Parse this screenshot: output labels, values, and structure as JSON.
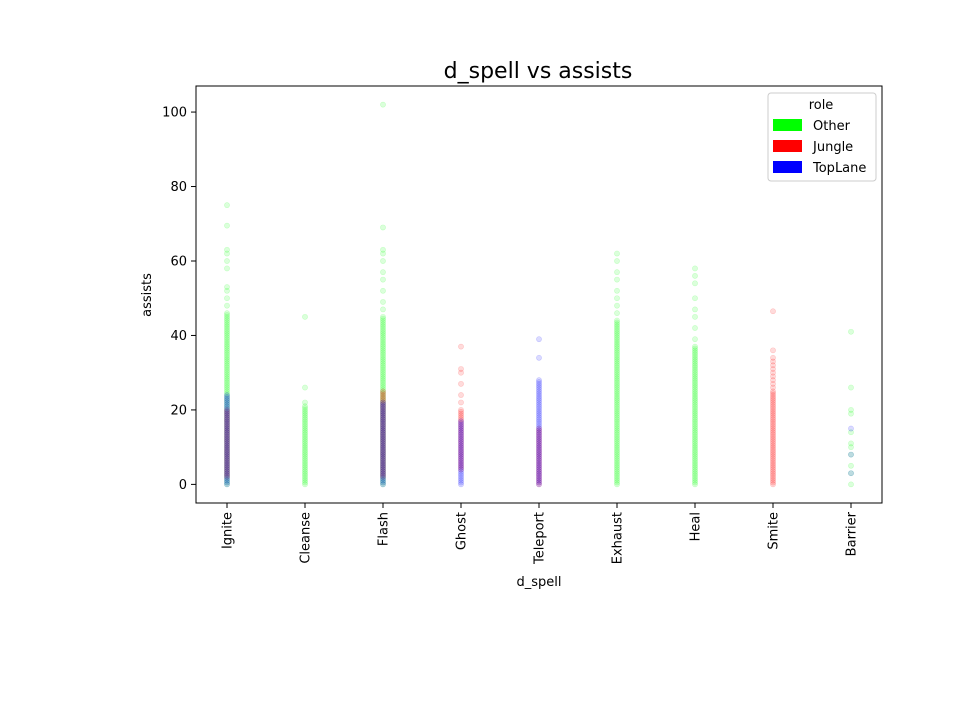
{
  "chart_data": {
    "type": "scatter",
    "title": "d_spell vs assists",
    "xlabel": "d_spell",
    "ylabel": "assists",
    "categories": [
      "Ignite",
      "Cleanse",
      "Flash",
      "Ghost",
      "Teleport",
      "Exhaust",
      "Heal",
      "Smite",
      "Barrier"
    ],
    "ylim": [
      -5,
      107
    ],
    "yticks": [
      0,
      20,
      40,
      60,
      80,
      100
    ],
    "grid": false,
    "legend": {
      "title": "role",
      "placement": "top-right"
    },
    "series": [
      {
        "name": "Other",
        "color": "#00ff00",
        "points": {
          "Ignite": {
            "dense_min": 0,
            "dense_max": 46,
            "sparse": [
              48,
              50,
              52,
              53,
              58,
              60,
              62,
              63,
              69.5,
              75
            ]
          },
          "Cleanse": {
            "dense_min": 0,
            "dense_max": 21,
            "sparse": [
              22,
              26,
              45
            ]
          },
          "Flash": {
            "dense_min": 0,
            "dense_max": 45,
            "sparse": [
              47,
              49,
              52,
              55,
              57,
              60,
              62,
              63,
              69,
              102
            ]
          },
          "Exhaust": {
            "dense_min": 0,
            "dense_max": 44,
            "sparse": [
              46,
              48,
              50,
              52,
              55,
              57,
              60,
              62
            ]
          },
          "Heal": {
            "dense_min": 0,
            "dense_max": 37,
            "sparse": [
              39,
              42,
              45,
              47,
              50,
              54,
              56,
              58
            ]
          },
          "Barrier": {
            "dense_min": 0,
            "dense_max": 0,
            "sparse": [
              0,
              3,
              5,
              8,
              10,
              11,
              14,
              19,
              20,
              26,
              41
            ]
          }
        }
      },
      {
        "name": "Jungle",
        "color": "#ff0000",
        "points": {
          "Ignite": {
            "dense_min": 2,
            "dense_max": 20,
            "sparse": []
          },
          "Flash": {
            "dense_min": 2,
            "dense_max": 25,
            "sparse": []
          },
          "Ghost": {
            "dense_min": 4,
            "dense_max": 20,
            "sparse": [
              22,
              24,
              27,
              30,
              31,
              37
            ]
          },
          "Teleport": {
            "dense_min": 0,
            "dense_max": 15,
            "sparse": []
          },
          "Smite": {
            "dense_min": 0,
            "dense_max": 25,
            "sparse": [
              26,
              27,
              28,
              29,
              30,
              31,
              32,
              33,
              34,
              36,
              46.5
            ]
          }
        }
      },
      {
        "name": "TopLane",
        "color": "#0000ff",
        "points": {
          "Ignite": {
            "dense_min": 0,
            "dense_max": 24,
            "sparse": []
          },
          "Flash": {
            "dense_min": 0,
            "dense_max": 22,
            "sparse": []
          },
          "Ghost": {
            "dense_min": 0,
            "dense_max": 17,
            "sparse": []
          },
          "Teleport": {
            "dense_min": 0,
            "dense_max": 28,
            "sparse": [
              34,
              39
            ]
          },
          "Barrier": {
            "dense_min": 0,
            "dense_max": 0,
            "sparse": [
              3,
              8,
              15
            ]
          }
        }
      }
    ]
  }
}
